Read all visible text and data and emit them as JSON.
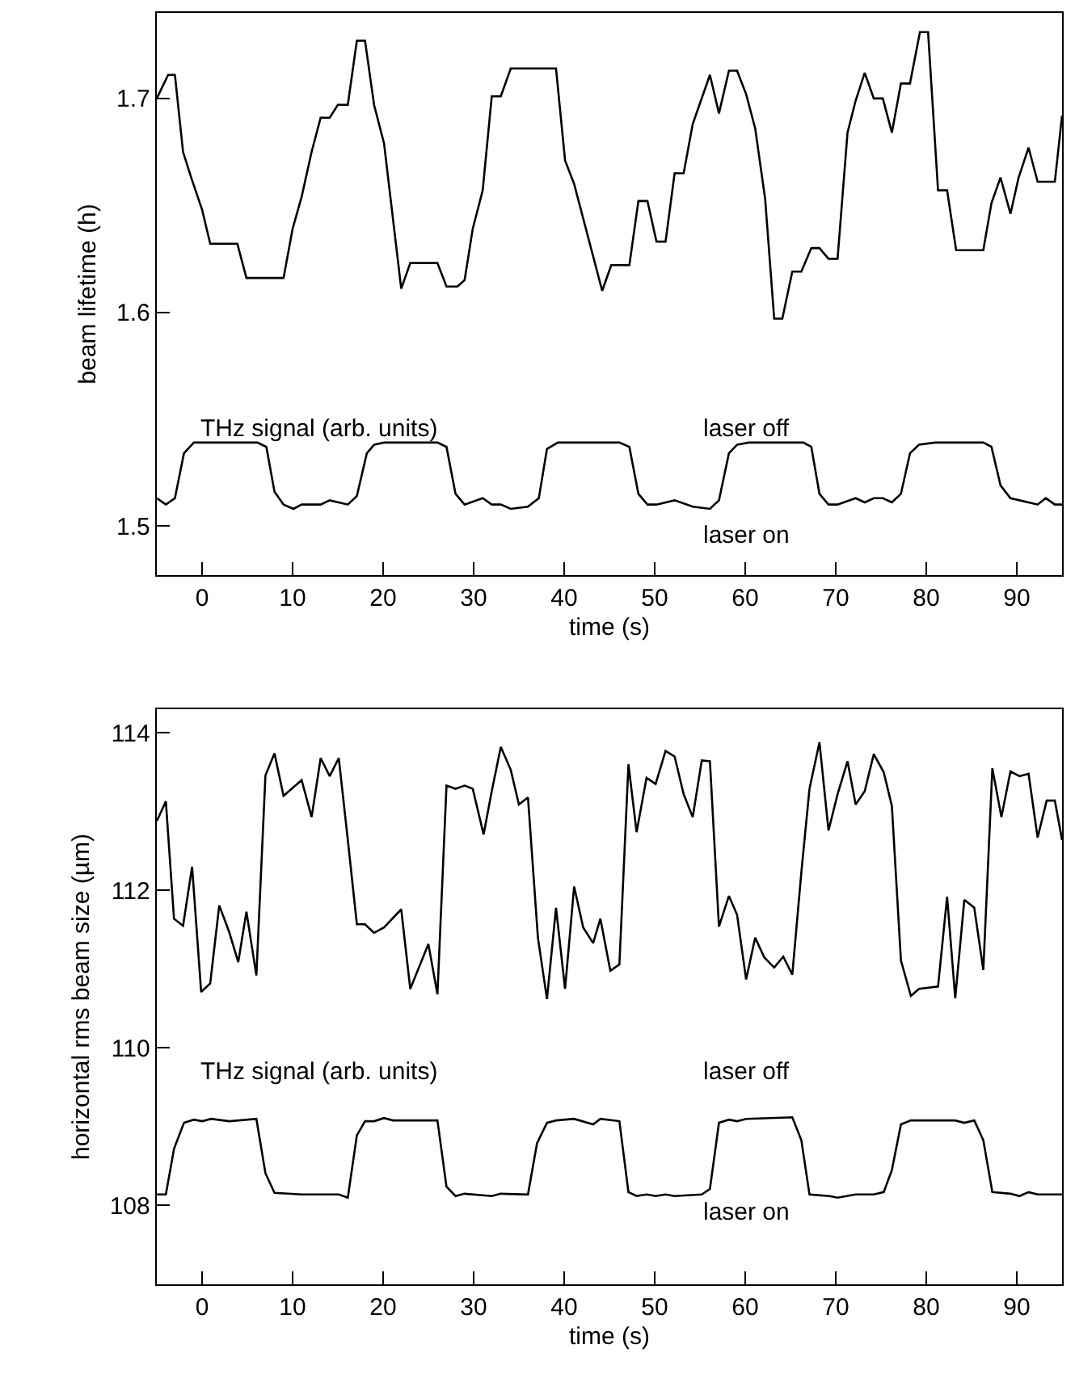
{
  "chart_data": [
    {
      "type": "line",
      "xlabel": "time (s)",
      "ylabel": "beam lifetime (h)",
      "xlim": [
        -5,
        95
      ],
      "xticks": [
        0,
        10,
        20,
        30,
        40,
        50,
        60,
        70,
        80,
        90
      ],
      "ylim": [
        1.477,
        1.74
      ],
      "yticks": [
        1.5,
        1.6,
        1.7
      ],
      "marker": "none",
      "line_style": "solid",
      "annotations": [
        "THz signal (arb. units)",
        "laser off",
        "laser on"
      ],
      "series": [
        {
          "color": "#000000",
          "x": [
            -5,
            -3.75,
            -3,
            -2.1,
            -1.2,
            0,
            0.9,
            3.9,
            4.9,
            9,
            10,
            11,
            12.1,
            13.1,
            14.1,
            15,
            16.1,
            17.1,
            18,
            19,
            20.1,
            22,
            23,
            26,
            27,
            28.2,
            29,
            29.9,
            31,
            32,
            33,
            34.1,
            39.1,
            40.1,
            41.1,
            44.2,
            45.2,
            47.2,
            48.2,
            49.2,
            50.2,
            51.2,
            52.2,
            53.2,
            54.2,
            56.1,
            57.1,
            58.2,
            59.1,
            60.1,
            61.1,
            62.2,
            63.2,
            64.1,
            65.2,
            66.2,
            67.3,
            68.2,
            69.2,
            70.2,
            71.3,
            72.2,
            73.2,
            74.2,
            75.2,
            76.2,
            77.2,
            78.2,
            79.3,
            80.2,
            81.3,
            82.3,
            83.3,
            86.3,
            87.2,
            88.2,
            89.3,
            90.2,
            91.3,
            92.3,
            94.2,
            95
          ],
          "values": [
            1.7,
            1.711,
            1.711,
            1.675,
            1.663,
            1.648,
            1.632,
            1.632,
            1.616,
            1.616,
            1.639,
            1.654,
            1.675,
            1.691,
            1.691,
            1.697,
            1.697,
            1.727,
            1.727,
            1.697,
            1.679,
            1.611,
            1.623,
            1.623,
            1.612,
            1.612,
            1.615,
            1.639,
            1.657,
            1.701,
            1.701,
            1.714,
            1.714,
            1.671,
            1.66,
            1.61,
            1.622,
            1.622,
            1.652,
            1.652,
            1.633,
            1.633,
            1.665,
            1.665,
            1.688,
            1.711,
            1.693,
            1.713,
            1.713,
            1.702,
            1.686,
            1.653,
            1.597,
            1.597,
            1.619,
            1.619,
            1.63,
            1.63,
            1.625,
            1.625,
            1.684,
            1.699,
            1.712,
            1.7,
            1.7,
            1.684,
            1.707,
            1.707,
            1.731,
            1.731,
            1.657,
            1.657,
            1.629,
            1.629,
            1.651,
            1.663,
            1.646,
            1.663,
            1.677,
            1.661,
            1.661,
            1.692
          ]
        },
        {
          "color": "#000000",
          "x": [
            -5,
            -4,
            -3,
            -2,
            -0.9,
            0,
            6.1,
            7.1,
            8,
            9,
            10.1,
            11,
            13.1,
            14.1,
            16.1,
            17.1,
            18.2,
            19,
            20.1,
            26,
            27,
            28,
            29,
            31,
            32,
            33,
            34.1,
            36,
            37.2,
            38.1,
            39.3,
            41.4,
            46.1,
            47.2,
            48.2,
            49.2,
            50.2,
            52.2,
            54.2,
            56.1,
            57.1,
            58.2,
            59.1,
            60.4,
            66.4,
            67.3,
            68.2,
            69.2,
            70.2,
            72.2,
            73.2,
            74.2,
            75.2,
            76.2,
            77.2,
            78.2,
            79.2,
            81,
            86.3,
            87.2,
            88.2,
            89.3,
            92.3,
            93.2,
            94.2,
            95
          ],
          "values": [
            1.513,
            1.51,
            1.513,
            1.534,
            1.539,
            1.539,
            1.539,
            1.537,
            1.516,
            1.51,
            1.508,
            1.51,
            1.51,
            1.512,
            1.51,
            1.514,
            1.534,
            1.538,
            1.539,
            1.539,
            1.537,
            1.515,
            1.51,
            1.513,
            1.51,
            1.51,
            1.508,
            1.509,
            1.513,
            1.536,
            1.539,
            1.539,
            1.539,
            1.537,
            1.515,
            1.51,
            1.51,
            1.512,
            1.509,
            1.508,
            1.512,
            1.534,
            1.538,
            1.539,
            1.539,
            1.537,
            1.515,
            1.51,
            1.51,
            1.513,
            1.511,
            1.513,
            1.513,
            1.511,
            1.515,
            1.534,
            1.538,
            1.539,
            1.539,
            1.537,
            1.519,
            1.513,
            1.51,
            1.513,
            1.51,
            1.51
          ]
        }
      ]
    },
    {
      "type": "line",
      "xlabel": "time (s)",
      "ylabel": "horizontal rms beam size (µm)",
      "xlim": [
        -5,
        95
      ],
      "xticks": [
        0,
        10,
        20,
        30,
        40,
        50,
        60,
        70,
        80,
        90
      ],
      "ylim": [
        107,
        114.3
      ],
      "yticks": [
        108,
        110,
        112,
        114
      ],
      "marker": "none",
      "line_style": "solid",
      "annotations": [
        "THz signal (arb. units)",
        "laser off",
        "laser on"
      ],
      "series": [
        {
          "color": "#000000",
          "x": [
            -5,
            -4,
            -3.1,
            -2.1,
            -1.1,
            -0.1,
            0.9,
            1.9,
            3,
            4,
            4.9,
            6,
            7,
            8,
            9,
            11,
            12.1,
            13.1,
            14.1,
            15.1,
            16.1,
            17.1,
            18,
            19,
            20.1,
            22,
            23,
            25,
            26,
            27,
            28,
            29,
            29.9,
            31.1,
            32,
            33,
            34.1,
            35,
            36,
            37.1,
            38.1,
            39.1,
            40.1,
            41.1,
            42.1,
            43.2,
            44,
            45.1,
            46.1,
            47.1,
            48,
            49.1,
            50.1,
            51.2,
            52.2,
            53.2,
            54.2,
            55.2,
            56.1,
            57.1,
            58.2,
            59.1,
            60.1,
            61.1,
            62.1,
            63.2,
            64.2,
            65.2,
            66.2,
            67.1,
            68.2,
            69.2,
            70.2,
            71.3,
            72.2,
            73.2,
            74.2,
            75.3,
            76.2,
            77.2,
            78.3,
            79.2,
            81.3,
            82.3,
            83.2,
            84.2,
            85.3,
            86.3,
            87.3,
            88.3,
            89.3,
            90.3,
            91.3,
            92.3,
            93.3,
            94.2,
            95
          ],
          "values": [
            112.88,
            113.13,
            111.64,
            111.55,
            112.3,
            110.71,
            110.82,
            111.81,
            111.47,
            111.09,
            111.73,
            110.92,
            113.46,
            113.74,
            113.2,
            113.4,
            112.93,
            113.68,
            113.45,
            113.68,
            112.64,
            111.57,
            111.57,
            111.46,
            111.53,
            111.76,
            110.75,
            111.32,
            110.68,
            113.33,
            113.29,
            113.33,
            113.29,
            112.71,
            113.26,
            113.82,
            113.53,
            113.09,
            113.18,
            111.4,
            110.62,
            111.78,
            110.75,
            112.05,
            111.53,
            111.33,
            111.64,
            110.98,
            111.06,
            113.6,
            112.74,
            113.43,
            113.35,
            113.77,
            113.7,
            113.22,
            112.93,
            113.65,
            113.64,
            111.54,
            111.93,
            111.69,
            110.87,
            111.4,
            111.15,
            111.02,
            111.16,
            110.93,
            112.23,
            113.29,
            113.88,
            112.76,
            113.22,
            113.64,
            113.09,
            113.26,
            113.73,
            113.5,
            113.07,
            111.11,
            110.66,
            110.75,
            110.78,
            111.92,
            110.63,
            111.88,
            111.78,
            110.99,
            113.55,
            112.93,
            113.51,
            113.45,
            113.48,
            112.67,
            113.14,
            113.14,
            112.64
          ]
        },
        {
          "color": "#000000",
          "x": [
            -5,
            -4,
            -3.1,
            -2,
            -0.9,
            0,
            1,
            3,
            6,
            7,
            8,
            11,
            15.1,
            16.1,
            17.1,
            18,
            19,
            20.1,
            21.1,
            25,
            26,
            27,
            28,
            29,
            32,
            33,
            36,
            37,
            38.1,
            39.1,
            41.1,
            43.2,
            44,
            46.1,
            47.1,
            48,
            49.1,
            50.1,
            51.2,
            52.2,
            55.2,
            56.1,
            57.1,
            58.2,
            59.1,
            60.1,
            65.2,
            66.2,
            67.1,
            69.3,
            70.2,
            72.2,
            74.2,
            75.3,
            76.2,
            77.2,
            78.3,
            80,
            83.2,
            84.2,
            85.3,
            86.3,
            87.3,
            89.3,
            90.3,
            91.3,
            92.3,
            95
          ],
          "values": [
            108.14,
            108.14,
            108.72,
            109.05,
            109.09,
            109.07,
            109.1,
            109.07,
            109.1,
            108.41,
            108.16,
            108.14,
            108.14,
            108.1,
            108.89,
            109.07,
            109.07,
            109.11,
            109.08,
            109.08,
            109.08,
            108.24,
            108.12,
            108.15,
            108.12,
            108.15,
            108.14,
            108.79,
            109.05,
            109.08,
            109.1,
            109.03,
            109.1,
            109.07,
            108.17,
            108.12,
            108.14,
            108.12,
            108.14,
            108.12,
            108.14,
            108.21,
            109.05,
            109.09,
            109.07,
            109.1,
            109.12,
            108.83,
            108.14,
            108.12,
            108.1,
            108.14,
            108.14,
            108.17,
            108.45,
            109.03,
            109.08,
            109.08,
            109.08,
            109.05,
            109.08,
            108.83,
            108.17,
            108.15,
            108.12,
            108.17,
            108.14,
            108.14
          ]
        }
      ]
    }
  ]
}
